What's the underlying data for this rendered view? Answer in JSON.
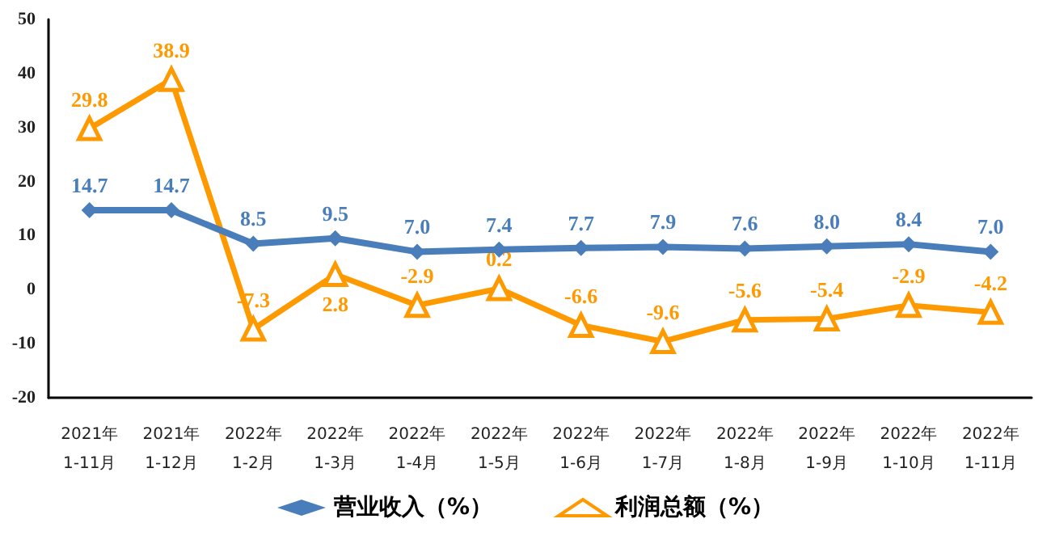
{
  "chart_data": {
    "type": "line",
    "categories": [
      "2021年\n1-11月",
      "2021年\n1-12月",
      "2022年\n1-2月",
      "2022年\n1-3月",
      "2022年\n1-4月",
      "2022年\n1-5月",
      "2022年\n1-6月",
      "2022年\n1-7月",
      "2022年\n1-8月",
      "2022年\n1-9月",
      "2022年\n1-10月",
      "2022年\n1-11月"
    ],
    "series": [
      {
        "name": "营业收入（%）",
        "color": "#4a7ebb",
        "marker": "diamond",
        "values": [
          14.7,
          14.7,
          8.5,
          9.5,
          7.0,
          7.4,
          7.7,
          7.9,
          7.6,
          8.0,
          8.4,
          7.0
        ],
        "value_labels": [
          "14.7",
          "14.7",
          "8.5",
          "9.5",
          "7.0",
          "7.4",
          "7.7",
          "7.9",
          "7.6",
          "8.0",
          "8.4",
          "7.0"
        ]
      },
      {
        "name": "利润总额（%）",
        "color": "#ff9900",
        "marker": "triangle",
        "values": [
          29.8,
          38.9,
          -7.3,
          2.8,
          -2.9,
          0.2,
          -6.6,
          -9.6,
          -5.6,
          -5.4,
          -2.9,
          -4.2
        ],
        "value_labels": [
          "29.8",
          "38.9",
          "-7.3",
          "2.8",
          "-2.9",
          "0.2",
          "-6.6",
          "-9.6",
          "-5.6",
          "-5.4",
          "-2.9",
          "-4.2"
        ]
      }
    ],
    "ylim": [
      -20,
      50
    ],
    "yticks": [
      -20,
      -10,
      0,
      10,
      20,
      30,
      40,
      50
    ],
    "grid": false,
    "legend": "bottom",
    "line_style": "solid"
  }
}
